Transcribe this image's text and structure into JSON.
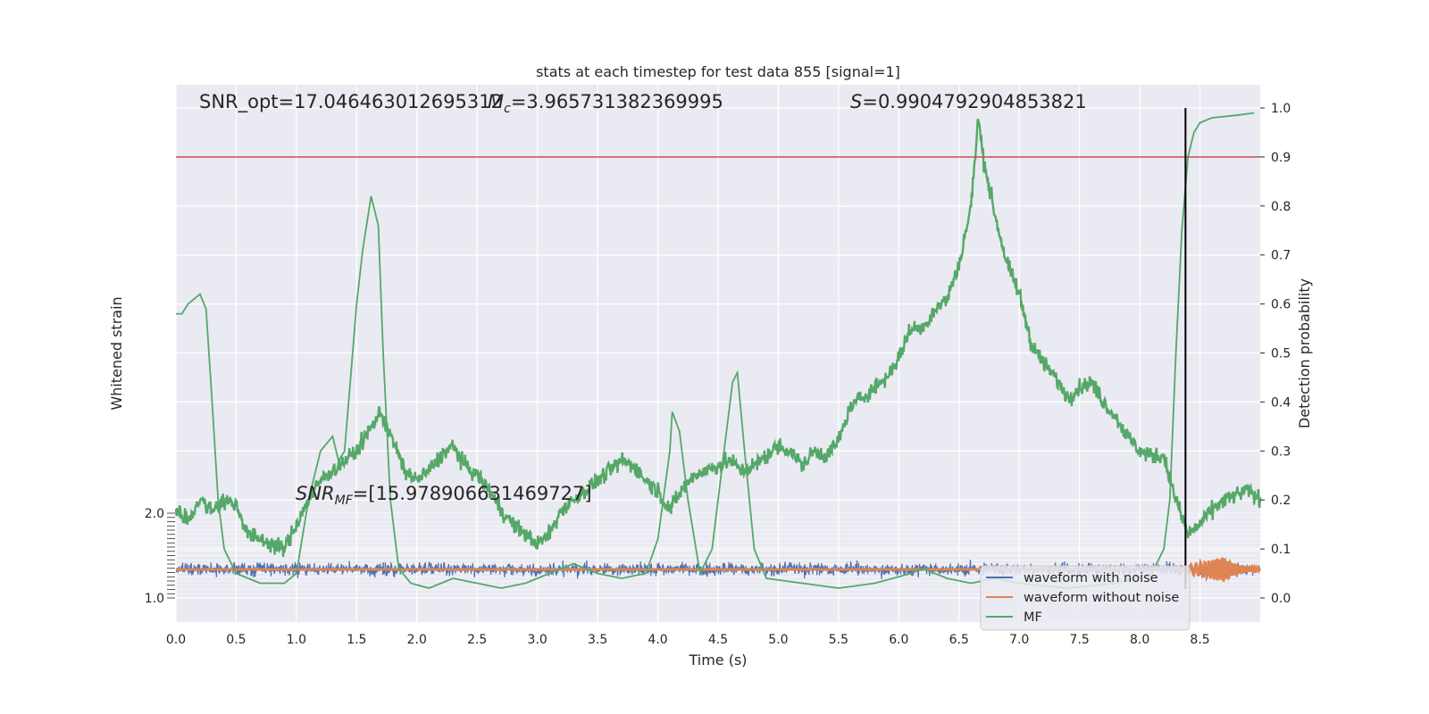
{
  "chart_data": {
    "type": "line",
    "title": "stats at each timestep for test data 855 [signal=1]",
    "xlabel": "Time (s)",
    "ylabel_left": "Whitened strain",
    "ylabel_right": "Detection probability",
    "xlim": [
      0.0,
      9.0
    ],
    "ylim_right": [
      -0.05,
      1.05
    ],
    "x_ticks": [
      "0.0",
      "0.5",
      "1.0",
      "1.5",
      "2.0",
      "2.5",
      "3.0",
      "3.5",
      "4.0",
      "4.5",
      "5.0",
      "5.5",
      "6.0",
      "6.5",
      "7.0",
      "7.5",
      "8.0",
      "8.5"
    ],
    "x_tick_values": [
      0.0,
      0.5,
      1.0,
      1.5,
      2.0,
      2.5,
      3.0,
      3.5,
      4.0,
      4.5,
      5.0,
      5.5,
      6.0,
      6.5,
      7.0,
      7.5,
      8.0,
      8.5
    ],
    "right_ticks": [
      "0.0",
      "0.1",
      "0.2",
      "0.3",
      "0.4",
      "0.5",
      "0.6",
      "0.7",
      "0.8",
      "0.9",
      "1.0"
    ],
    "right_tick_values": [
      0.0,
      0.1,
      0.2,
      0.3,
      0.4,
      0.5,
      0.6,
      0.7,
      0.8,
      0.9,
      1.0
    ],
    "left_ticks_top": "2.0",
    "left_ticks_bottom": "1.0",
    "annotations": {
      "snr_opt": "SNR_opt=17.046463012695312",
      "mc_symbol": "M",
      "mc_sub": "c",
      "mc_value": "=3.965731382369995",
      "s_symbol": "S",
      "s_value": "=0.9904792904853821",
      "snr_mf_symbol": "SNR",
      "snr_mf_sub": "MF",
      "snr_mf_value": "=[15.978906631469727]"
    },
    "threshold": 0.9,
    "detection_time": 8.38,
    "series": [
      {
        "name": "waveform with noise",
        "color": "#4c72b0",
        "noise_amplitude": 0.2
      },
      {
        "name": "waveform without noise",
        "color": "#dd8452",
        "chirp_start": 8.25,
        "chirp_peak": 8.7
      },
      {
        "name": "MF",
        "color": "#55a868",
        "smooth_points": [
          [
            0.0,
            0.58
          ],
          [
            0.05,
            0.58
          ],
          [
            0.1,
            0.6
          ],
          [
            0.2,
            0.62
          ],
          [
            0.25,
            0.59
          ],
          [
            0.3,
            0.4
          ],
          [
            0.35,
            0.2
          ],
          [
            0.4,
            0.1
          ],
          [
            0.5,
            0.05
          ],
          [
            0.6,
            0.04
          ],
          [
            0.7,
            0.03
          ],
          [
            0.8,
            0.03
          ],
          [
            0.9,
            0.03
          ],
          [
            1.0,
            0.05
          ],
          [
            1.1,
            0.2
          ],
          [
            1.2,
            0.3
          ],
          [
            1.3,
            0.33
          ],
          [
            1.35,
            0.28
          ],
          [
            1.4,
            0.3
          ],
          [
            1.45,
            0.45
          ],
          [
            1.5,
            0.6
          ],
          [
            1.55,
            0.71
          ],
          [
            1.62,
            0.82
          ],
          [
            1.68,
            0.76
          ],
          [
            1.72,
            0.5
          ],
          [
            1.78,
            0.2
          ],
          [
            1.85,
            0.06
          ],
          [
            1.95,
            0.03
          ],
          [
            2.1,
            0.02
          ],
          [
            2.3,
            0.04
          ],
          [
            2.5,
            0.03
          ],
          [
            2.7,
            0.02
          ],
          [
            2.9,
            0.03
          ],
          [
            3.1,
            0.05
          ],
          [
            3.3,
            0.07
          ],
          [
            3.5,
            0.05
          ],
          [
            3.7,
            0.04
          ],
          [
            3.9,
            0.05
          ],
          [
            4.0,
            0.12
          ],
          [
            4.1,
            0.3
          ],
          [
            4.12,
            0.38
          ],
          [
            4.18,
            0.34
          ],
          [
            4.25,
            0.2
          ],
          [
            4.35,
            0.05
          ],
          [
            4.45,
            0.1
          ],
          [
            4.55,
            0.3
          ],
          [
            4.62,
            0.44
          ],
          [
            4.66,
            0.46
          ],
          [
            4.72,
            0.3
          ],
          [
            4.8,
            0.1
          ],
          [
            4.9,
            0.04
          ],
          [
            5.2,
            0.03
          ],
          [
            5.5,
            0.02
          ],
          [
            5.8,
            0.03
          ],
          [
            6.1,
            0.05
          ],
          [
            6.2,
            0.06
          ],
          [
            6.4,
            0.04
          ],
          [
            6.6,
            0.03
          ],
          [
            6.8,
            0.04
          ],
          [
            7.0,
            0.03
          ],
          [
            7.4,
            0.02
          ],
          [
            7.8,
            0.03
          ],
          [
            8.1,
            0.05
          ],
          [
            8.2,
            0.1
          ],
          [
            8.25,
            0.2
          ],
          [
            8.3,
            0.5
          ],
          [
            8.35,
            0.75
          ],
          [
            8.4,
            0.9
          ],
          [
            8.45,
            0.95
          ],
          [
            8.5,
            0.97
          ],
          [
            8.6,
            0.98
          ],
          [
            8.8,
            0.985
          ],
          [
            8.95,
            0.99
          ]
        ],
        "noisy_points": [
          [
            0.0,
            0.18
          ],
          [
            0.1,
            0.16
          ],
          [
            0.2,
            0.2
          ],
          [
            0.3,
            0.18
          ],
          [
            0.4,
            0.2
          ],
          [
            0.5,
            0.19
          ],
          [
            0.6,
            0.13
          ],
          [
            0.7,
            0.12
          ],
          [
            0.8,
            0.11
          ],
          [
            0.9,
            0.1
          ],
          [
            1.0,
            0.15
          ],
          [
            1.1,
            0.2
          ],
          [
            1.2,
            0.24
          ],
          [
            1.3,
            0.26
          ],
          [
            1.4,
            0.28
          ],
          [
            1.5,
            0.3
          ],
          [
            1.6,
            0.34
          ],
          [
            1.7,
            0.38
          ],
          [
            1.8,
            0.32
          ],
          [
            1.9,
            0.26
          ],
          [
            2.0,
            0.24
          ],
          [
            2.1,
            0.26
          ],
          [
            2.2,
            0.29
          ],
          [
            2.3,
            0.31
          ],
          [
            2.4,
            0.27
          ],
          [
            2.5,
            0.25
          ],
          [
            2.6,
            0.22
          ],
          [
            2.7,
            0.18
          ],
          [
            2.8,
            0.15
          ],
          [
            2.9,
            0.13
          ],
          [
            3.0,
            0.11
          ],
          [
            3.1,
            0.13
          ],
          [
            3.2,
            0.18
          ],
          [
            3.3,
            0.2
          ],
          [
            3.4,
            0.22
          ],
          [
            3.5,
            0.24
          ],
          [
            3.6,
            0.26
          ],
          [
            3.7,
            0.28
          ],
          [
            3.8,
            0.27
          ],
          [
            3.9,
            0.24
          ],
          [
            4.0,
            0.22
          ],
          [
            4.1,
            0.18
          ],
          [
            4.2,
            0.22
          ],
          [
            4.3,
            0.25
          ],
          [
            4.4,
            0.26
          ],
          [
            4.5,
            0.27
          ],
          [
            4.6,
            0.28
          ],
          [
            4.7,
            0.26
          ],
          [
            4.8,
            0.27
          ],
          [
            4.9,
            0.29
          ],
          [
            5.0,
            0.31
          ],
          [
            5.1,
            0.3
          ],
          [
            5.2,
            0.27
          ],
          [
            5.3,
            0.3
          ],
          [
            5.4,
            0.29
          ],
          [
            5.5,
            0.32
          ],
          [
            5.6,
            0.39
          ],
          [
            5.7,
            0.41
          ],
          [
            5.8,
            0.43
          ],
          [
            5.9,
            0.45
          ],
          [
            6.0,
            0.49
          ],
          [
            6.1,
            0.55
          ],
          [
            6.2,
            0.55
          ],
          [
            6.3,
            0.59
          ],
          [
            6.4,
            0.61
          ],
          [
            6.5,
            0.68
          ],
          [
            6.6,
            0.8
          ],
          [
            6.66,
            0.98
          ],
          [
            6.7,
            0.9
          ],
          [
            6.8,
            0.78
          ],
          [
            6.9,
            0.68
          ],
          [
            7.0,
            0.62
          ],
          [
            7.1,
            0.52
          ],
          [
            7.2,
            0.48
          ],
          [
            7.3,
            0.45
          ],
          [
            7.4,
            0.41
          ],
          [
            7.5,
            0.43
          ],
          [
            7.6,
            0.44
          ],
          [
            7.7,
            0.4
          ],
          [
            7.8,
            0.37
          ],
          [
            7.9,
            0.33
          ],
          [
            8.0,
            0.3
          ],
          [
            8.1,
            0.29
          ],
          [
            8.2,
            0.29
          ],
          [
            8.3,
            0.2
          ],
          [
            8.4,
            0.13
          ],
          [
            8.5,
            0.15
          ],
          [
            8.6,
            0.18
          ],
          [
            8.7,
            0.2
          ],
          [
            8.8,
            0.21
          ],
          [
            8.9,
            0.22
          ],
          [
            9.0,
            0.2
          ]
        ]
      }
    ],
    "legend": {
      "placement": "lower-right",
      "items": [
        {
          "label": "waveform with noise",
          "color": "#4c72b0"
        },
        {
          "label": "waveform without noise",
          "color": "#dd8452"
        },
        {
          "label": "MF",
          "color": "#55a868"
        }
      ]
    },
    "colors": {
      "axes_bg": "#eaeaf2",
      "grid": "#ffffff",
      "threshold": "#c44e52",
      "vline": "#000000"
    },
    "grid": true
  }
}
